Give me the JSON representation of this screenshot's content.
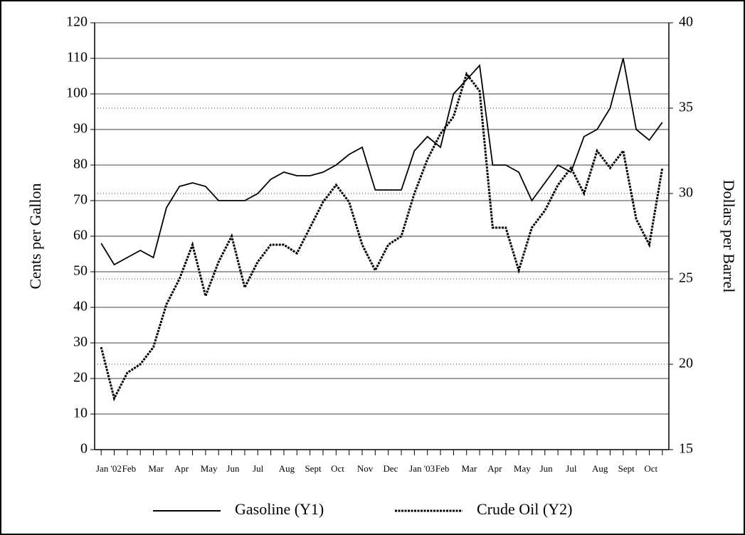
{
  "chart_data": {
    "type": "line",
    "y_label": "Cents per Gallon",
    "y2_label": "Dollars per Barrel",
    "categories": [
      "Jan '02",
      null,
      "Feb",
      null,
      "Mar",
      null,
      "Apr",
      null,
      "May",
      null,
      "Jun",
      null,
      "Jul",
      null,
      "Aug",
      null,
      "Sept",
      null,
      "Oct",
      null,
      "Nov",
      null,
      "Dec",
      null,
      "Jan '03",
      null,
      "Feb",
      null,
      "Mar",
      null,
      "Apr",
      null,
      "May",
      null,
      "Jun",
      null,
      "Jul",
      null,
      "Aug",
      null,
      "Sept",
      null,
      "Oct",
      null
    ],
    "series": [
      {
        "name": "Gasoline (Y1)",
        "color": "#000000",
        "dash": "solid",
        "values": [
          58,
          52,
          54,
          56,
          54,
          68,
          74,
          75,
          74,
          70,
          70,
          70,
          72,
          76,
          78,
          77,
          77,
          78,
          80,
          83,
          85,
          73,
          73,
          73,
          84,
          88,
          85,
          100,
          104,
          108,
          80,
          80,
          78,
          70,
          75,
          80,
          78,
          88,
          90,
          96,
          110,
          90,
          87,
          92
        ]
      },
      {
        "name": "Crude Oil (Y2)",
        "color": "#000000",
        "dash": "dashed",
        "axis": "y2",
        "values": [
          21,
          18,
          19.5,
          20,
          21,
          23.5,
          25,
          27,
          24,
          26,
          27.5,
          24.5,
          26,
          27,
          27,
          26.5,
          28,
          29.5,
          30.5,
          29.5,
          27,
          25.5,
          27,
          27.5,
          30,
          32,
          33.5,
          34.5,
          37,
          36,
          28,
          28,
          25.5,
          28,
          29,
          30.5,
          31.5,
          30,
          32.5,
          31.5,
          32.5,
          28.5,
          27,
          31.5
        ]
      }
    ],
    "ylim": [
      0,
      120
    ],
    "yticks": [
      0,
      10,
      20,
      30,
      40,
      50,
      60,
      70,
      80,
      90,
      100,
      110,
      120
    ],
    "y2lim": [
      15,
      40
    ],
    "y2ticks": [
      15,
      20,
      25,
      30,
      35,
      40
    ],
    "grid": true,
    "legend": "bottom"
  }
}
